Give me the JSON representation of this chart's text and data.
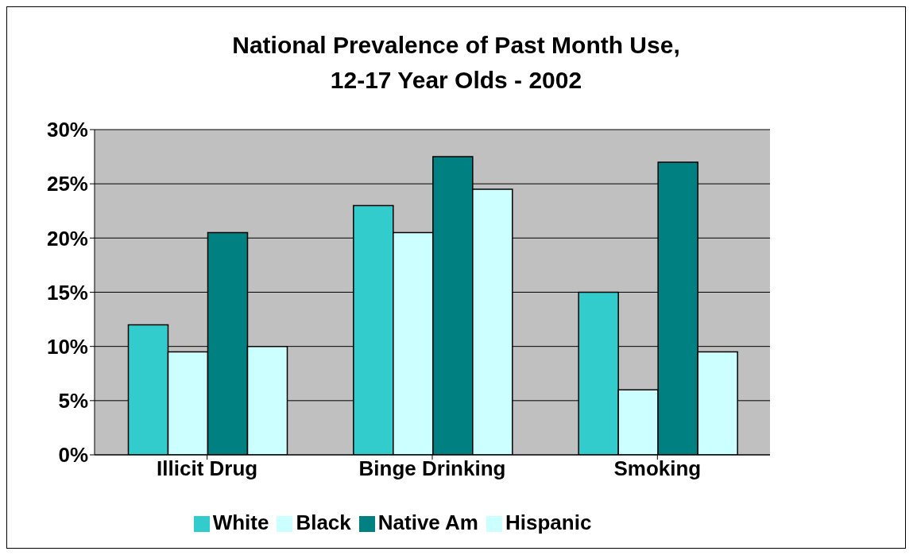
{
  "chart_data": {
    "type": "bar",
    "title": "National Prevalence of Past Month Use,\n12-17 Year Olds - 2002",
    "categories": [
      "Illicit Drug",
      "Binge Drinking",
      "Smoking"
    ],
    "series": [
      {
        "name": "White",
        "color": "#33cccc",
        "values": [
          12,
          23,
          15
        ]
      },
      {
        "name": "Black",
        "color": "#ccffff",
        "values": [
          9.5,
          20.5,
          6
        ]
      },
      {
        "name": "Native Am",
        "color": "#008080",
        "values": [
          20.5,
          27.5,
          27
        ]
      },
      {
        "name": "Hispanic",
        "color": "#ccffff",
        "values": [
          10,
          24.5,
          9.5
        ]
      }
    ],
    "ylim": [
      0,
      30
    ],
    "yticks": [
      {
        "value": 0,
        "label": "0%"
      },
      {
        "value": 5,
        "label": "5%"
      },
      {
        "value": 10,
        "label": "10%"
      },
      {
        "value": 15,
        "label": "15%"
      },
      {
        "value": 20,
        "label": "20%"
      },
      {
        "value": 25,
        "label": "25%"
      },
      {
        "value": 30,
        "label": "30%"
      }
    ],
    "grid": "y",
    "legend": "bottom"
  }
}
